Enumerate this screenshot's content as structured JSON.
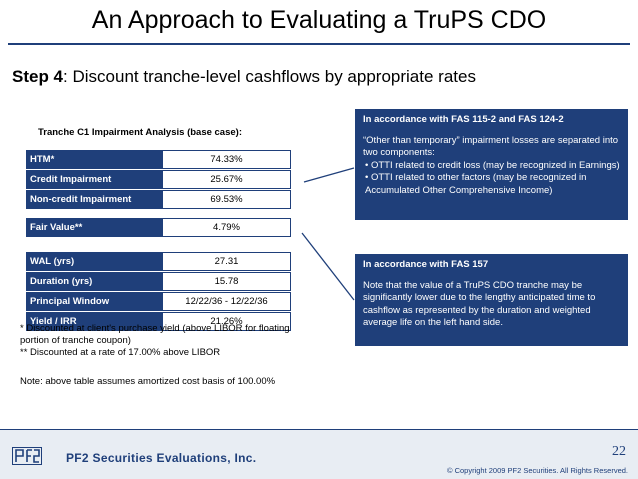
{
  "title": "An Approach to Evaluating a TruPS CDO",
  "step": {
    "label": "Step 4",
    "text": ": Discount tranche-level cashflows by appropriate rates"
  },
  "analysis_label": "Tranche C1 Impairment Analysis (base case):",
  "table1": [
    {
      "key": "HTM*",
      "value": "74.33%"
    },
    {
      "key": "Credit Impairment",
      "value": "25.67%"
    },
    {
      "key": "Non-credit Impairment",
      "value": "69.53%"
    }
  ],
  "table2": [
    {
      "key": "Fair Value**",
      "value": "4.79%"
    }
  ],
  "table3": [
    {
      "key": "WAL (yrs)",
      "value": "27.31"
    },
    {
      "key": "Duration (yrs)",
      "value": "15.78"
    },
    {
      "key": "Principal Window",
      "value": "12/22/36 - 12/22/36"
    },
    {
      "key": "Yield / IRR",
      "value": "21.26%"
    }
  ],
  "footnotes": [
    "* Discounted at client's purchase yield (above LIBOR for floating portion of tranche coupon)",
    "** Discounted at a rate of 17.00% above LIBOR"
  ],
  "note": "Note: above table assumes amortized cost basis of 100.00%",
  "box1": {
    "head": "In accordance with FAS 115-2 and FAS 124-2",
    "intro": "“Other than temporary” impairment losses are separated into two components:",
    "bullets": [
      "• OTTI related to credit loss (may be recognized in Earnings)",
      "• OTTI related to other factors (may be recognized in Accumulated Other Comprehensive Income)"
    ]
  },
  "box2": {
    "head": "In accordance with FAS 157",
    "text": "Note that the value of a TruPS CDO tranche may be significantly lower due to the lengthy anticipated time to cashflow as represented by the duration and weighted average life on the left hand side."
  },
  "footer": {
    "logo": "pf2-logo-icon",
    "company": "PF2 Securities Evaluations, Inc.",
    "page": "22",
    "copyright": "© Copyright 2009 PF2 Securities. All Rights Reserved."
  },
  "colors": {
    "navy": "#1f3f7a",
    "footer_bg": "#e8edf3"
  }
}
